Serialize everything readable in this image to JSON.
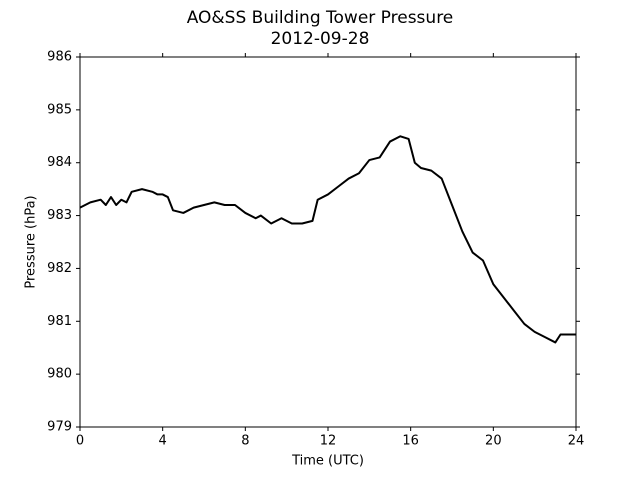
{
  "chart_data": {
    "type": "line",
    "title": "AO&SS Building Tower Pressure",
    "subtitle": "2012-09-28",
    "x_label": "Time (UTC)",
    "y_label": "Pressure (hPa)",
    "xlim": [
      0,
      24
    ],
    "xticks": [
      0,
      4,
      8,
      12,
      16,
      20,
      24
    ],
    "ylim": [
      979,
      986
    ],
    "yticks": [
      979,
      980,
      981,
      982,
      983,
      984,
      985,
      986
    ],
    "x": [
      0,
      0.5,
      1,
      1.25,
      1.5,
      1.75,
      2,
      2.25,
      2.5,
      3,
      3.5,
      3.75,
      4,
      4.25,
      4.5,
      5,
      5.5,
      6,
      6.5,
      7,
      7.5,
      8,
      8.5,
      8.75,
      9.25,
      9.75,
      10.25,
      10.75,
      11.25,
      11.5,
      12,
      12.5,
      13,
      13.5,
      14,
      14.5,
      15,
      15.5,
      15.9,
      16.2,
      16.5,
      17,
      17.5,
      18,
      18.5,
      19,
      19.5,
      20,
      20.5,
      21,
      21.5,
      22,
      22.5,
      23,
      23.25,
      24
    ],
    "series": [
      {
        "name": "Pressure",
        "color": "#000000",
        "values": [
          983.15,
          983.25,
          983.3,
          983.2,
          983.35,
          983.2,
          983.3,
          983.25,
          983.45,
          983.5,
          983.45,
          983.4,
          983.4,
          983.35,
          983.1,
          983.05,
          983.15,
          983.2,
          983.25,
          983.2,
          983.2,
          983.05,
          982.95,
          983.0,
          982.85,
          982.95,
          982.85,
          982.85,
          982.9,
          983.3,
          983.4,
          983.55,
          983.7,
          983.8,
          984.05,
          984.1,
          984.4,
          984.5,
          984.45,
          984.0,
          983.9,
          983.85,
          983.7,
          983.2,
          982.7,
          982.3,
          982.15,
          981.7,
          981.45,
          981.2,
          980.95,
          980.8,
          980.7,
          980.6,
          980.75,
          980.75
        ]
      }
    ]
  }
}
